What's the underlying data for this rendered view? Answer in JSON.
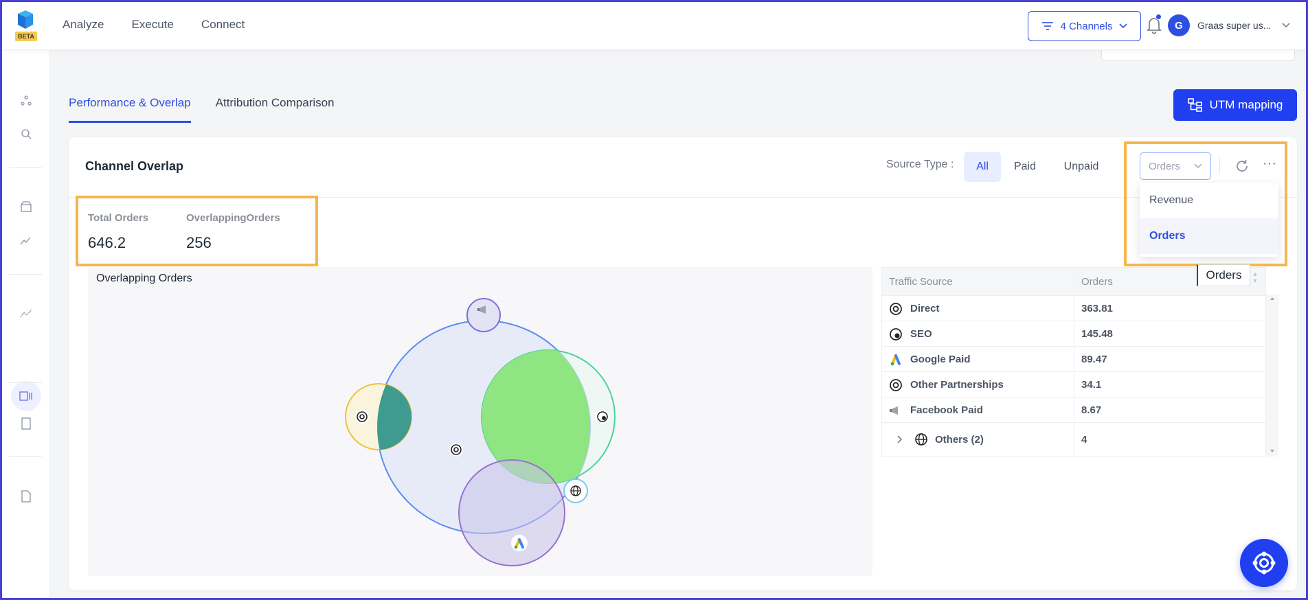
{
  "app": {
    "badge": "BETA"
  },
  "nav": {
    "items": [
      "Analyze",
      "Execute",
      "Connect"
    ]
  },
  "header": {
    "channels_label": "4 Channels",
    "avatar_initial": "G",
    "user_name": "Graas super us..."
  },
  "tabs": {
    "performance": "Performance & Overlap",
    "attribution": "Attribution Comparison"
  },
  "utm_button": "UTM mapping",
  "card": {
    "title": "Channel Overlap",
    "source_type_label": "Source Type :",
    "source_types": [
      "All",
      "Paid",
      "Unpaid"
    ],
    "active_source_type": "All",
    "metric_select_value": "Orders",
    "metric_options": [
      "Revenue",
      "Orders"
    ],
    "selected_metric": "Orders"
  },
  "metrics": {
    "total_label": "Total Orders",
    "total_value": "646.2",
    "overlap_label": "OverlappingOrders",
    "overlap_value": "256"
  },
  "venn": {
    "title": "Overlapping Orders"
  },
  "table": {
    "headers": [
      "Traffic Source",
      "Orders"
    ],
    "tooltip": "Orders",
    "rows": [
      {
        "icon": "target-icon",
        "name": "Direct",
        "value": "363.81"
      },
      {
        "icon": "globe-search-icon",
        "name": "SEO",
        "value": "145.48"
      },
      {
        "icon": "google-ads-icon",
        "name": "Google Paid",
        "value": "89.47"
      },
      {
        "icon": "target-icon",
        "name": "Other Partnerships",
        "value": "34.1"
      },
      {
        "icon": "megaphone-icon",
        "name": "Facebook Paid",
        "value": "8.67"
      },
      {
        "icon": "globe-icon",
        "name": "Others (2)",
        "value": "4"
      }
    ]
  },
  "colors": {
    "primary": "#1f3ff0",
    "highlight": "#f7b54d",
    "direct_circle": "#5b8def",
    "seo_circle": "#4cd39a",
    "google_circle": "#9b6fd0",
    "partner_circle": "#f0c040"
  }
}
